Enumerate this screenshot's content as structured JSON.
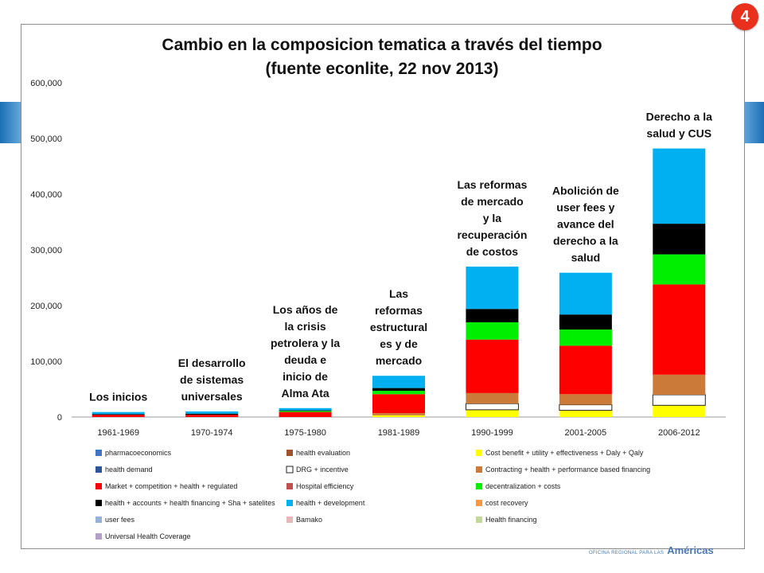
{
  "slide": {
    "badge": "4",
    "footer_small": "OFICINA REGIONAL PARA LAS",
    "footer_big": "Américas"
  },
  "chart_data": {
    "type": "bar",
    "stacked": true,
    "title": [
      "Cambio en la composicion tematica a través del tiempo",
      "(fuente econlite, 22 nov 2013)"
    ],
    "xlabel": "",
    "ylabel": "",
    "ylim": [
      0,
      600000
    ],
    "yticks": [
      0,
      100000,
      200000,
      300000,
      400000,
      500000,
      600000
    ],
    "ytick_labels": [
      "0",
      "100,000",
      "200,000",
      "300,000",
      "400,000",
      "500,000",
      "600,000"
    ],
    "grid": false,
    "legend_position": "bottom",
    "categories": [
      "1961-1969",
      "1970-1974",
      "1975-1980",
      "1981-1989",
      "1990-1999",
      "2001-2005",
      "2006-2012"
    ],
    "series": [
      {
        "name": "Cost benefit + utility + effectiveness + Daly + Qaly",
        "color": "#ffff00",
        "values": [
          0,
          0,
          0,
          3000,
          13000,
          12000,
          21000
        ]
      },
      {
        "name": "DRG + incentive",
        "color": "#ffffff",
        "values": [
          0,
          0,
          0,
          0,
          11000,
          10000,
          19000
        ]
      },
      {
        "name": "Contracting + health + performance based financing",
        "color": "#cc7a3a",
        "values": [
          0,
          0,
          0,
          4000,
          19000,
          19000,
          36000
        ]
      },
      {
        "name": "Market + competition + health + regulated",
        "color": "#ff0000",
        "values": [
          4000,
          4000,
          9000,
          34000,
          96000,
          87000,
          162000
        ]
      },
      {
        "name": "decentralization + costs",
        "color": "#00ee00",
        "values": [
          0,
          0,
          2000,
          6000,
          31000,
          29000,
          54000
        ]
      },
      {
        "name": "health + accounts + health financing + Sha + satelites",
        "color": "#000000",
        "values": [
          1000,
          2000,
          1000,
          5000,
          24000,
          27000,
          55000
        ]
      },
      {
        "name": "health + development",
        "color": "#00b0f0",
        "values": [
          4000,
          4000,
          4000,
          22000,
          76000,
          75000,
          135000
        ]
      }
    ],
    "legend": [
      {
        "name": "pharmacoeconomics",
        "color": "#4472c4"
      },
      {
        "name": "health evaluation",
        "color": "#a0522d"
      },
      {
        "name": "Cost benefit + utility + effectiveness + Daly + Qaly",
        "color": "#ffff00"
      },
      {
        "name": "health demand",
        "color": "#2e5597"
      },
      {
        "name": "DRG + incentive",
        "color": "#ffffff"
      },
      {
        "name": "Contracting + health + performance based financing",
        "color": "#cc7a3a"
      },
      {
        "name": "Market + competition + health + regulated",
        "color": "#ff0000"
      },
      {
        "name": "Hospital efficiency",
        "color": "#c0504d"
      },
      {
        "name": "decentralization + costs",
        "color": "#00ee00"
      },
      {
        "name": "health + accounts + health financing + Sha + satelites",
        "color": "#000000"
      },
      {
        "name": "health + development",
        "color": "#00b0f0"
      },
      {
        "name": "cost recovery",
        "color": "#f79646"
      },
      {
        "name": "user fees",
        "color": "#95b3d7"
      },
      {
        "name": "Bamako",
        "color": "#e6b9b8"
      },
      {
        "name": "Health financing",
        "color": "#c4d79b"
      },
      {
        "name": "Universal Health Coverage",
        "color": "#b1a0c7"
      }
    ],
    "annotations": [
      {
        "category": "1961-1969",
        "lines": [
          "Los inicios"
        ]
      },
      {
        "category": "1970-1974",
        "lines": [
          "El desarrollo",
          "de sistemas",
          "universales"
        ]
      },
      {
        "category": "1975-1980",
        "lines": [
          "Los años de",
          "la crisis",
          "petrolera y la",
          "deuda e",
          "inicio de",
          "Alma Ata"
        ]
      },
      {
        "category": "1981-1989",
        "lines": [
          "Las",
          "reformas",
          "estructural",
          "es y de",
          "mercado"
        ]
      },
      {
        "category": "1990-1999",
        "lines": [
          "Las reformas",
          "de mercado",
          "y la",
          "recuperación",
          "de costos"
        ]
      },
      {
        "category": "2001-2005",
        "lines": [
          "Abolición de",
          "user fees y",
          "avance del",
          "derecho a la",
          "salud"
        ]
      },
      {
        "category": "2006-2012",
        "lines": [
          "Derecho a la",
          "salud y CUS"
        ]
      }
    ]
  }
}
